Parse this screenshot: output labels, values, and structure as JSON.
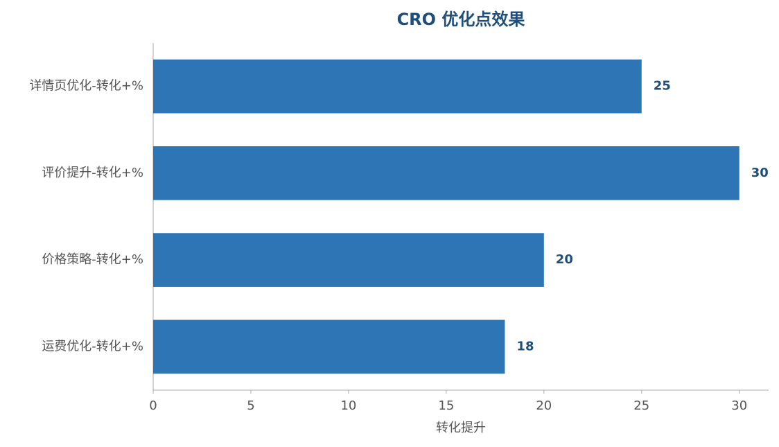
{
  "chart_data": {
    "type": "barh",
    "title": "CRO 优化点效果",
    "x_label": "转化提升",
    "categories": [
      "详情页优化-转化+%",
      "评价提升-转化+%",
      "价格策略-转化+%",
      "运费优化-转化+%"
    ],
    "values": [
      25,
      30,
      20,
      18
    ],
    "color": "#2e75b6",
    "label_color": "#1f4e79",
    "xlim": [
      0,
      31.5
    ],
    "xticks": [
      0,
      5,
      10,
      15,
      20,
      25,
      30
    ]
  }
}
